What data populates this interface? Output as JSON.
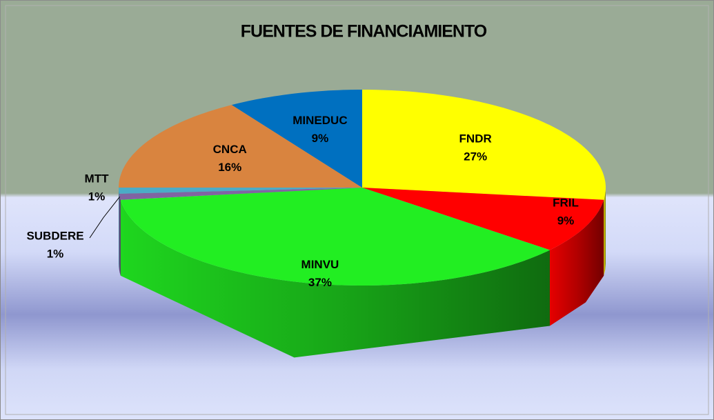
{
  "chart_data": {
    "type": "pie",
    "title": "FUENTES DE FINANCIAMIENTO",
    "categories": [
      "FNDR",
      "FRIL",
      "MINVU",
      "SUBDERE",
      "MTT",
      "CNCA",
      "MINEDUC"
    ],
    "values": [
      27,
      9,
      37,
      1,
      1,
      16,
      9
    ],
    "value_labels": [
      "27%",
      "9%",
      "37%",
      "1%",
      "1%",
      "16%",
      "9%"
    ],
    "colors": [
      "#ffff00",
      "#ff0000",
      "#22ee22",
      "#8064a2",
      "#4bacc6",
      "#d9843f",
      "#0070c0"
    ]
  }
}
